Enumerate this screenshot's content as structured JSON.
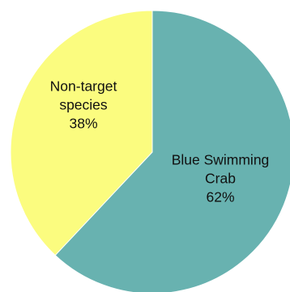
{
  "chart_data": {
    "type": "pie",
    "title": "",
    "slices": [
      {
        "name": "Blue Swimming Crab",
        "label_lines": [
          "Blue Swimming",
          "Crab"
        ],
        "value": 62,
        "value_label": "62%",
        "color": "#68b2b0"
      },
      {
        "name": "Non-target species",
        "label_lines": [
          "Non-target",
          "species"
        ],
        "value": 38,
        "value_label": "38%",
        "color": "#fbfc7f"
      }
    ],
    "start": "12 o'clock",
    "direction": "clockwise",
    "data_labels": "inside",
    "legend": "none"
  }
}
